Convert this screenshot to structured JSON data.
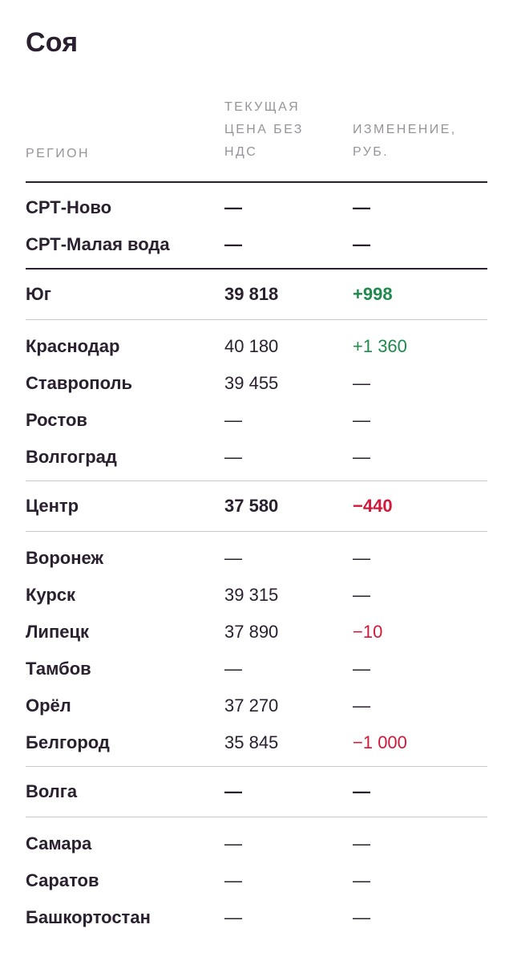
{
  "title": "Соя",
  "header": {
    "region": "РЕГИОН",
    "price": "ТЕКУЩАЯ ЦЕНА БЕЗ НДС",
    "change": "ИЗМЕНЕНИЕ, РУБ."
  },
  "groups": [
    {
      "rows": [
        {
          "region": "СРТ-Ново",
          "price": "—",
          "change": "—"
        },
        {
          "region": "СРТ-Малая вода",
          "price": "—",
          "change": "—"
        }
      ]
    },
    {
      "total": {
        "region": "Юг",
        "price": "39 818",
        "change": "+998"
      },
      "rows": [
        {
          "region": "Краснодар",
          "price": "40 180",
          "change": "+1 360"
        },
        {
          "region": "Ставрополь",
          "price": "39 455",
          "change": "—"
        },
        {
          "region": "Ростов",
          "price": "—",
          "change": "—"
        },
        {
          "region": "Волгоград",
          "price": "—",
          "change": "—"
        }
      ]
    },
    {
      "total": {
        "region": "Центр",
        "price": "37 580",
        "change": "−440"
      },
      "rows": [
        {
          "region": "Воронеж",
          "price": "—",
          "change": "—"
        },
        {
          "region": "Курск",
          "price": "39 315",
          "change": "—"
        },
        {
          "region": "Липецк",
          "price": "37 890",
          "change": "−10"
        },
        {
          "region": "Тамбов",
          "price": "—",
          "change": "—"
        },
        {
          "region": "Орёл",
          "price": "37 270",
          "change": "—"
        },
        {
          "region": "Белгород",
          "price": "35 845",
          "change": "−1 000"
        }
      ]
    },
    {
      "total": {
        "region": "Волга",
        "price": "—",
        "change": "—"
      },
      "rows": [
        {
          "region": "Самара",
          "price": "—",
          "change": "—"
        },
        {
          "region": "Саратов",
          "price": "—",
          "change": "—"
        },
        {
          "region": "Башкортостан",
          "price": "—",
          "change": "—"
        }
      ]
    }
  ],
  "colors": {
    "positive": "#1f8a4c",
    "negative": "#d1193a",
    "text": "#2a2030",
    "header": "#97939b"
  }
}
